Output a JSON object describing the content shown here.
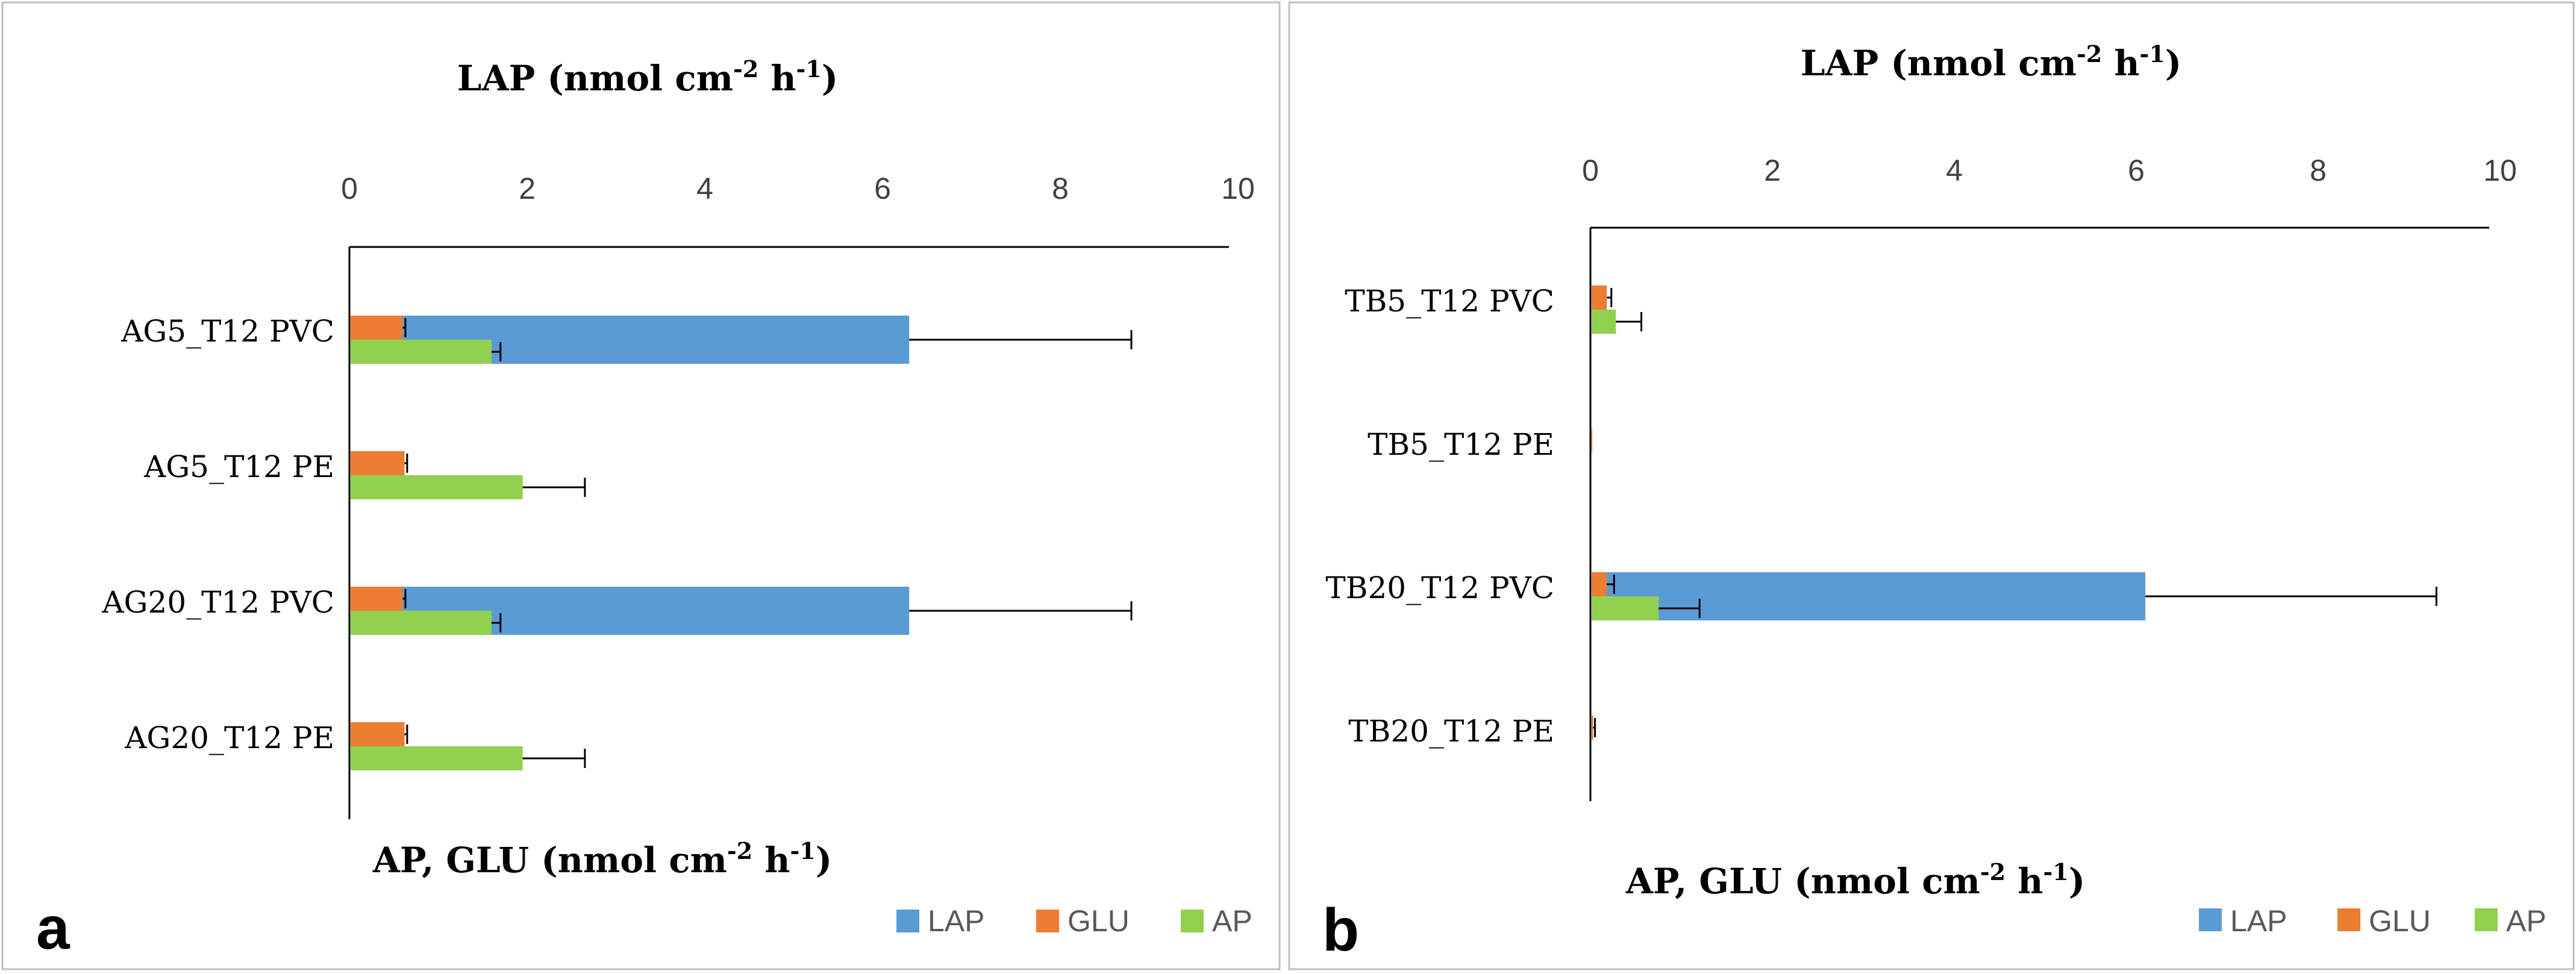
{
  "colors": {
    "LAP": "#5b9bd5",
    "GLU": "#ed7d31",
    "AP": "#92d050"
  },
  "chart_data": [
    {
      "type": "bar",
      "orientation": "horizontal",
      "panel_label": "a",
      "title_top": "LAP (nmol cm",
      "title_bottom": "AP, GLU (nmol cm",
      "unit_sup1": "-2",
      "unit_h": " h",
      "unit_sup2": "-1",
      "unit_close": ")",
      "xlim": [
        0,
        10
      ],
      "ticks": [
        "0",
        "2",
        "4",
        "6",
        "8",
        "10"
      ],
      "categories": [
        "AG5_T12 PVC",
        "AG5_T12 PE",
        "AG20_T12 PVC",
        "AG20_T12 PE"
      ],
      "series": [
        {
          "name": "LAP",
          "values": [
            6.3,
            0.0,
            6.3,
            0.0
          ],
          "errors": [
            2.5,
            0.0,
            2.5,
            0.0
          ]
        },
        {
          "name": "GLU",
          "values": [
            0.6,
            0.62,
            0.6,
            0.62
          ],
          "errors": [
            0.03,
            0.03,
            0.03,
            0.03
          ]
        },
        {
          "name": "AP",
          "values": [
            1.6,
            1.95,
            1.6,
            1.95
          ],
          "errors": [
            0.1,
            0.7,
            0.1,
            0.7
          ]
        }
      ],
      "legend": [
        "LAP",
        "GLU",
        "AP"
      ],
      "legend_position": "bottom-right"
    },
    {
      "type": "bar",
      "orientation": "horizontal",
      "panel_label": "b",
      "title_top": "LAP (nmol cm",
      "title_bottom": "AP, GLU (nmol cm",
      "unit_sup1": "-2",
      "unit_h": " h",
      "unit_sup2": "-1",
      "unit_close": ")",
      "xlim": [
        0,
        10
      ],
      "ticks": [
        "0",
        "2",
        "4",
        "6",
        "8",
        "10"
      ],
      "categories": [
        "TB5_T12 PVC",
        "TB5_T12 PE",
        "TB20_T12 PVC",
        "TB20_T12 PE"
      ],
      "series": [
        {
          "name": "LAP",
          "values": [
            0.0,
            0.0,
            6.1,
            0.0
          ],
          "errors": [
            0.0,
            0.0,
            3.2,
            0.0
          ]
        },
        {
          "name": "GLU",
          "values": [
            0.18,
            0.02,
            0.18,
            0.03
          ],
          "errors": [
            0.05,
            0.0,
            0.08,
            0.02
          ]
        },
        {
          "name": "AP",
          "values": [
            0.28,
            0.0,
            0.75,
            0.0
          ],
          "errors": [
            0.28,
            0.0,
            0.45,
            0.0
          ]
        }
      ],
      "legend": [
        "LAP",
        "GLU",
        "AP"
      ],
      "legend_position": "bottom-right"
    }
  ]
}
